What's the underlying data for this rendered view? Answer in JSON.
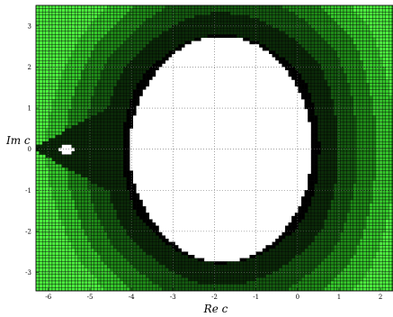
{
  "chart_data": {
    "type": "heatmap",
    "title": "",
    "xlabel": "Re c",
    "ylabel": "Im c",
    "xlim": [
      -6.3,
      2.3
    ],
    "ylim": [
      -3.45,
      3.5
    ],
    "x_ticks": [
      -6,
      -5,
      -4,
      -3,
      -2,
      -1,
      0,
      1,
      2
    ],
    "y_ticks": [
      -3,
      -2,
      -1,
      0,
      1,
      2,
      3
    ],
    "grid": true,
    "legend": "none",
    "colors": {
      "white": "#ffffff",
      "levels": [
        "#000000",
        "#0b2a08",
        "#145a10",
        "#1f8a18",
        "#35c82b",
        "#4df23f"
      ],
      "cell_line": "#000000"
    }
  }
}
